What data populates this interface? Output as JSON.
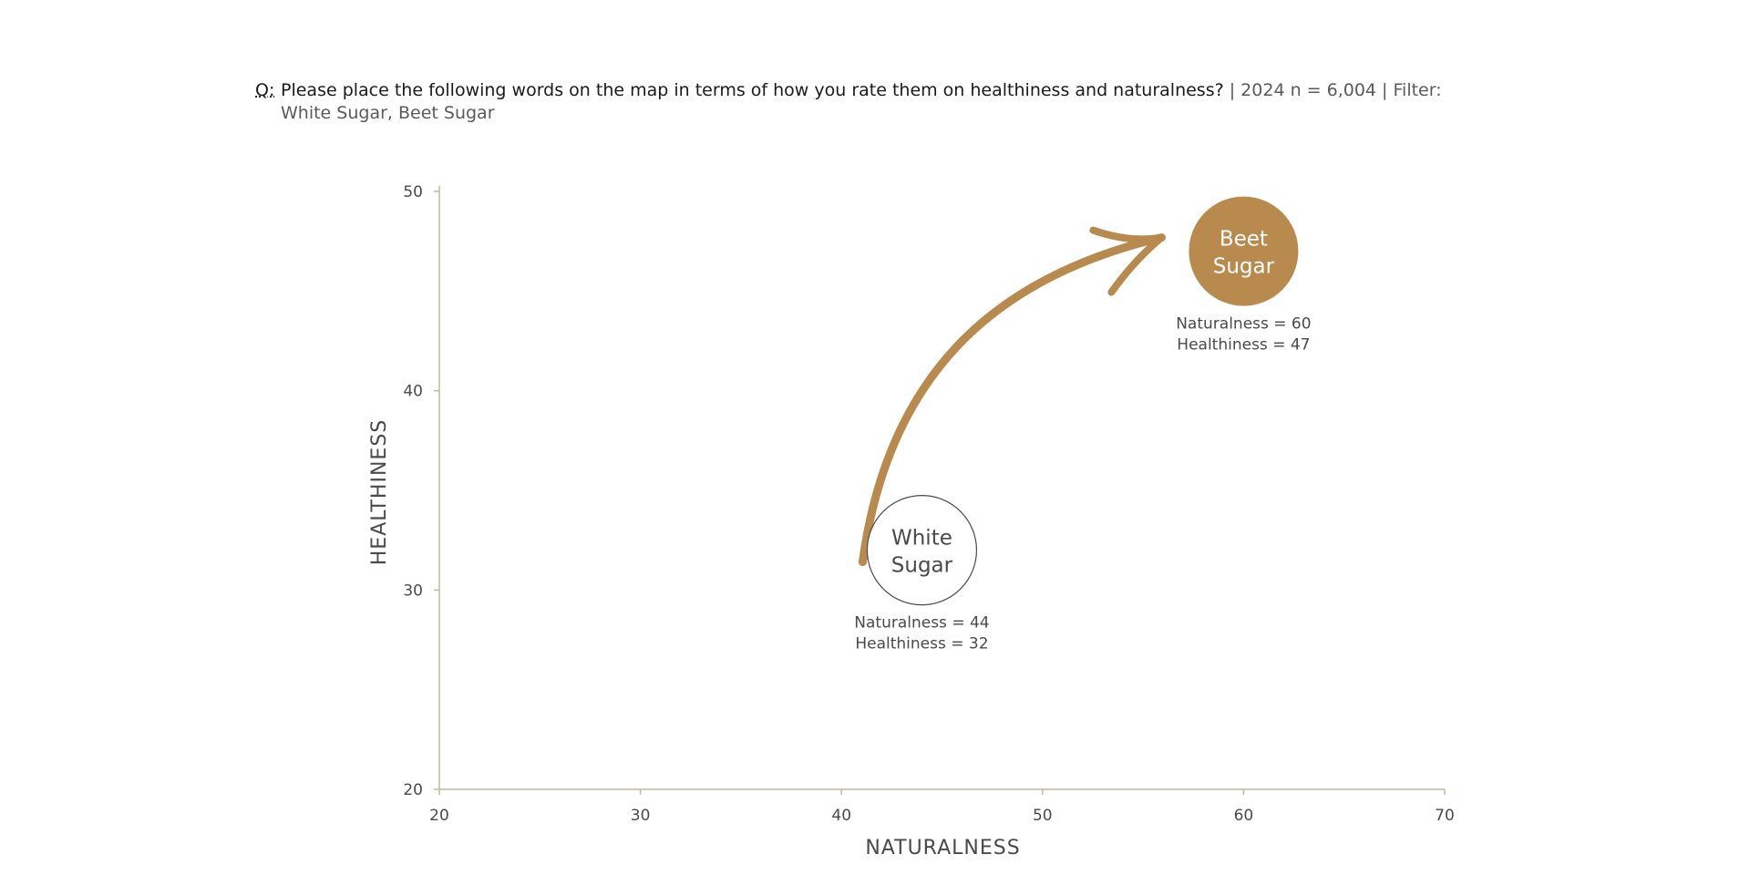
{
  "question": {
    "label": "Q:",
    "text": "Please place the following words on the map in terms of how you rate them on healthiness and naturalness?",
    "meta": " | 2024 n = 6,004 | Filter: White Sugar, Beet Sugar"
  },
  "colors": {
    "accent": "#b98a4e",
    "axis": "#c9b79c",
    "outline": "#4a4a4a"
  },
  "chart_data": {
    "type": "scatter",
    "xlabel": "NATURALNESS",
    "ylabel": "HEALTHINESS",
    "xlim": [
      20,
      70
    ],
    "ylim": [
      20,
      50
    ],
    "x_ticks": [
      20,
      30,
      40,
      50,
      60,
      70
    ],
    "y_ticks": [
      20,
      30,
      40,
      50
    ],
    "grid": false,
    "points": [
      {
        "name": "White Sugar",
        "label_lines": [
          "White",
          "Sugar"
        ],
        "x": 44,
        "y": 32,
        "style": "outline",
        "annotation": [
          "Naturalness = 44",
          "Healthiness = 32"
        ]
      },
      {
        "name": "Beet Sugar",
        "label_lines": [
          "Beet",
          "Sugar"
        ],
        "x": 60,
        "y": 47,
        "style": "filled",
        "annotation": [
          "Naturalness = 60",
          "Healthiness = 47"
        ]
      }
    ],
    "annotations": [
      {
        "type": "arrow",
        "from": "White Sugar",
        "to": "Beet Sugar"
      }
    ]
  }
}
